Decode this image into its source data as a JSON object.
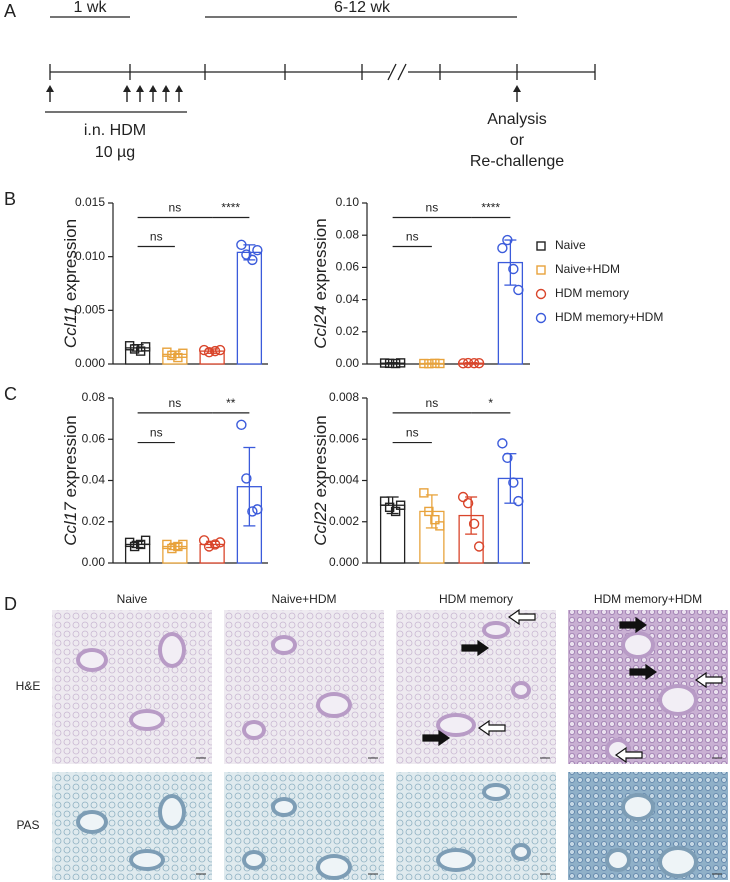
{
  "panels": [
    "A",
    "B",
    "C",
    "D"
  ],
  "timeline": {
    "first": "1 wk",
    "second": "6-12 wk",
    "dose_1": "i.n. HDM",
    "dose_2": "10 µg",
    "end_1": "Analysis",
    "end_2": "or",
    "end_3": "Re-challenge"
  },
  "legend": [
    {
      "name": "Naive",
      "color": "#222222",
      "marker": "square"
    },
    {
      "name": "Naive+HDM",
      "color": "#e8a33c",
      "marker": "square"
    },
    {
      "name": "HDM memory",
      "color": "#d9452b",
      "marker": "circle"
    },
    {
      "name": "HDM memory+HDM",
      "color": "#3b5bdb",
      "marker": "circle"
    }
  ],
  "chart_data": [
    {
      "type": "bar",
      "ylabel_gene": "Ccl11",
      "ylabel": "expression",
      "ylim": [
        0,
        0.015
      ],
      "yticks": [
        {
          "value": 0,
          "label": "0.000"
        },
        0.005,
        {
          "value": 0.01,
          "label": "0.010"
        },
        0.015
      ],
      "values": [
        0.0015,
        0.0009,
        0.0012,
        0.0104
      ],
      "errors": [
        0.0003,
        0.0003,
        0.0002,
        0.0007
      ],
      "points": [
        [
          0.0017,
          0.0014,
          0.0012,
          0.0016
        ],
        [
          0.0011,
          0.0008,
          0.0006,
          0.001
        ],
        [
          0.0013,
          0.0011,
          0.0012,
          0.0013
        ],
        [
          0.0111,
          0.0102,
          0.0097,
          0.0106
        ]
      ],
      "annotations": [
        {
          "from": 0,
          "to": 1,
          "label": "ns"
        },
        {
          "from": 0,
          "to": 2,
          "label": "ns"
        },
        {
          "from": 2,
          "to": 3,
          "label": "****"
        }
      ]
    },
    {
      "type": "bar",
      "ylabel_gene": "Ccl24",
      "ylabel": "expression",
      "ylim": [
        0,
        0.1
      ],
      "yticks": [
        {
          "value": 0,
          "label": "0.00"
        },
        {
          "value": 0.02,
          "label": "0.02"
        },
        {
          "value": 0.04,
          "label": "0.04"
        },
        {
          "value": 0.06,
          "label": "0.06"
        },
        {
          "value": 0.08,
          "label": "0.08"
        },
        {
          "value": 0.1,
          "label": "0.10"
        }
      ],
      "values": [
        0.0005,
        0.0003,
        0.0005,
        0.063
      ],
      "errors": [
        0.0003,
        0.0002,
        0.0003,
        0.014
      ],
      "points": [
        [
          0.0006,
          0.0004,
          0.0003,
          0.0007
        ],
        [
          0.0003,
          0.0002,
          0.0004,
          0.0003
        ],
        [
          0.0004,
          0.0006,
          0.0005,
          0.0005
        ],
        [
          0.072,
          0.077,
          0.059,
          0.046
        ]
      ],
      "annotations": [
        {
          "from": 0,
          "to": 1,
          "label": "ns"
        },
        {
          "from": 0,
          "to": 2,
          "label": "ns"
        },
        {
          "from": 2,
          "to": 3,
          "label": "****"
        }
      ]
    },
    {
      "type": "bar",
      "ylabel_gene": "Ccl17",
      "ylabel": "expression",
      "ylim": [
        0,
        0.08
      ],
      "yticks": [
        {
          "value": 0,
          "label": "0.00"
        },
        {
          "value": 0.02,
          "label": "0.02"
        },
        {
          "value": 0.04,
          "label": "0.04"
        },
        {
          "value": 0.06,
          "label": "0.06"
        },
        {
          "value": 0.08,
          "label": "0.08"
        }
      ],
      "values": [
        0.009,
        0.008,
        0.009,
        0.037
      ],
      "errors": [
        0.0015,
        0.0015,
        0.0015,
        0.019
      ],
      "points": [
        [
          0.01,
          0.008,
          0.009,
          0.011
        ],
        [
          0.009,
          0.007,
          0.008,
          0.009
        ],
        [
          0.011,
          0.008,
          0.009,
          0.01
        ],
        [
          0.067,
          0.041,
          0.025,
          0.026
        ]
      ],
      "annotations": [
        {
          "from": 0,
          "to": 1,
          "label": "ns"
        },
        {
          "from": 0,
          "to": 2,
          "label": "ns"
        },
        {
          "from": 2,
          "to": 3,
          "label": "**"
        }
      ]
    },
    {
      "type": "bar",
      "ylabel_gene": "Ccl22",
      "ylabel": "expression",
      "ylim": [
        0,
        0.008
      ],
      "yticks": [
        {
          "value": 0,
          "label": "0.000"
        },
        0.002,
        0.004,
        0.006,
        0.008
      ],
      "values": [
        0.0028,
        0.0025,
        0.0023,
        0.0041
      ],
      "errors": [
        0.0004,
        0.0008,
        0.0009,
        0.0012
      ],
      "points": [
        [
          0.003,
          0.0027,
          0.0025,
          0.0028
        ],
        [
          0.0034,
          0.0025,
          0.0021,
          0.0018
        ],
        [
          0.0032,
          0.0029,
          0.0019,
          0.0008
        ],
        [
          0.0058,
          0.0051,
          0.0039,
          0.003
        ]
      ],
      "annotations": [
        {
          "from": 0,
          "to": 1,
          "label": "ns"
        },
        {
          "from": 0,
          "to": 2,
          "label": "ns"
        },
        {
          "from": 2,
          "to": 3,
          "label": "*"
        }
      ]
    }
  ],
  "histology": {
    "columns": [
      "Naive",
      "Naive+HDM",
      "HDM memory",
      "HDM memory+HDM"
    ],
    "rows": [
      "H&E",
      "PAS"
    ]
  }
}
